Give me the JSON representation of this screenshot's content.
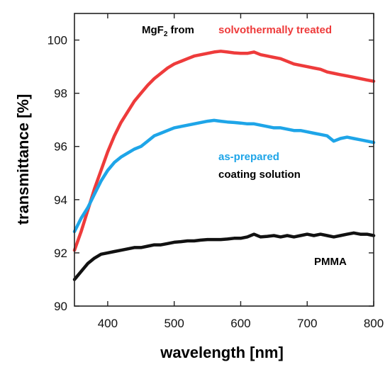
{
  "chart_data": {
    "type": "line",
    "title": "",
    "xlabel": "wavelength [nm]",
    "ylabel": "transmittance [%]",
    "xlim": [
      350,
      800
    ],
    "ylim": [
      90,
      101
    ],
    "xticks": [
      400,
      500,
      600,
      700,
      800
    ],
    "yticks": [
      90,
      92,
      94,
      96,
      98,
      100
    ],
    "grid": false,
    "legend": "none",
    "annotations": {
      "header_prefix": "MgF",
      "header_sub": "2",
      "header_suffix": " from",
      "solvo": "solvothermally treated",
      "asprep": "as-prepared",
      "coating": "coating solution",
      "pmma": "PMMA"
    },
    "series": [
      {
        "id": "solvothermally",
        "color": "#ee3b3b",
        "x": [
          350,
          360,
          370,
          380,
          390,
          400,
          410,
          420,
          430,
          440,
          450,
          460,
          470,
          480,
          490,
          500,
          510,
          520,
          530,
          540,
          550,
          560,
          570,
          580,
          590,
          600,
          610,
          620,
          630,
          640,
          650,
          660,
          670,
          680,
          690,
          700,
          710,
          720,
          730,
          740,
          750,
          760,
          770,
          780,
          790,
          800
        ],
        "y": [
          92.1,
          92.8,
          93.6,
          94.4,
          95.1,
          95.8,
          96.4,
          96.9,
          97.3,
          97.7,
          98.0,
          98.3,
          98.55,
          98.75,
          98.95,
          99.1,
          99.2,
          99.3,
          99.4,
          99.45,
          99.5,
          99.55,
          99.58,
          99.55,
          99.52,
          99.5,
          99.5,
          99.55,
          99.45,
          99.4,
          99.35,
          99.3,
          99.2,
          99.1,
          99.05,
          99.0,
          98.95,
          98.9,
          98.8,
          98.75,
          98.7,
          98.65,
          98.6,
          98.55,
          98.5,
          98.45
        ]
      },
      {
        "id": "as-prepared",
        "color": "#1ea5e8",
        "x": [
          350,
          360,
          370,
          380,
          390,
          400,
          410,
          420,
          430,
          440,
          450,
          460,
          470,
          480,
          490,
          500,
          510,
          520,
          530,
          540,
          550,
          560,
          570,
          580,
          590,
          600,
          610,
          620,
          630,
          640,
          650,
          660,
          670,
          680,
          690,
          700,
          710,
          720,
          730,
          740,
          750,
          760,
          770,
          780,
          790,
          800
        ],
        "y": [
          92.8,
          93.3,
          93.7,
          94.2,
          94.7,
          95.1,
          95.4,
          95.6,
          95.75,
          95.9,
          96.0,
          96.2,
          96.4,
          96.5,
          96.6,
          96.7,
          96.75,
          96.8,
          96.85,
          96.9,
          96.95,
          96.98,
          96.95,
          96.92,
          96.9,
          96.88,
          96.85,
          96.85,
          96.8,
          96.75,
          96.7,
          96.7,
          96.65,
          96.6,
          96.6,
          96.55,
          96.5,
          96.45,
          96.4,
          96.2,
          96.3,
          96.35,
          96.3,
          96.25,
          96.2,
          96.15
        ]
      },
      {
        "id": "pmma",
        "color": "#111111",
        "x": [
          350,
          360,
          370,
          380,
          390,
          400,
          410,
          420,
          430,
          440,
          450,
          460,
          470,
          480,
          490,
          500,
          510,
          520,
          530,
          540,
          550,
          560,
          570,
          580,
          590,
          600,
          610,
          620,
          630,
          640,
          650,
          660,
          670,
          680,
          690,
          700,
          710,
          720,
          730,
          740,
          750,
          760,
          770,
          780,
          790,
          800
        ],
        "y": [
          91.0,
          91.3,
          91.6,
          91.8,
          91.95,
          92.0,
          92.05,
          92.1,
          92.15,
          92.2,
          92.2,
          92.25,
          92.3,
          92.3,
          92.35,
          92.4,
          92.42,
          92.45,
          92.45,
          92.48,
          92.5,
          92.5,
          92.5,
          92.52,
          92.55,
          92.55,
          92.6,
          92.7,
          92.6,
          92.62,
          92.65,
          92.6,
          92.65,
          92.6,
          92.65,
          92.7,
          92.65,
          92.7,
          92.65,
          92.6,
          92.65,
          92.7,
          92.75,
          92.7,
          92.7,
          92.65
        ]
      }
    ]
  }
}
